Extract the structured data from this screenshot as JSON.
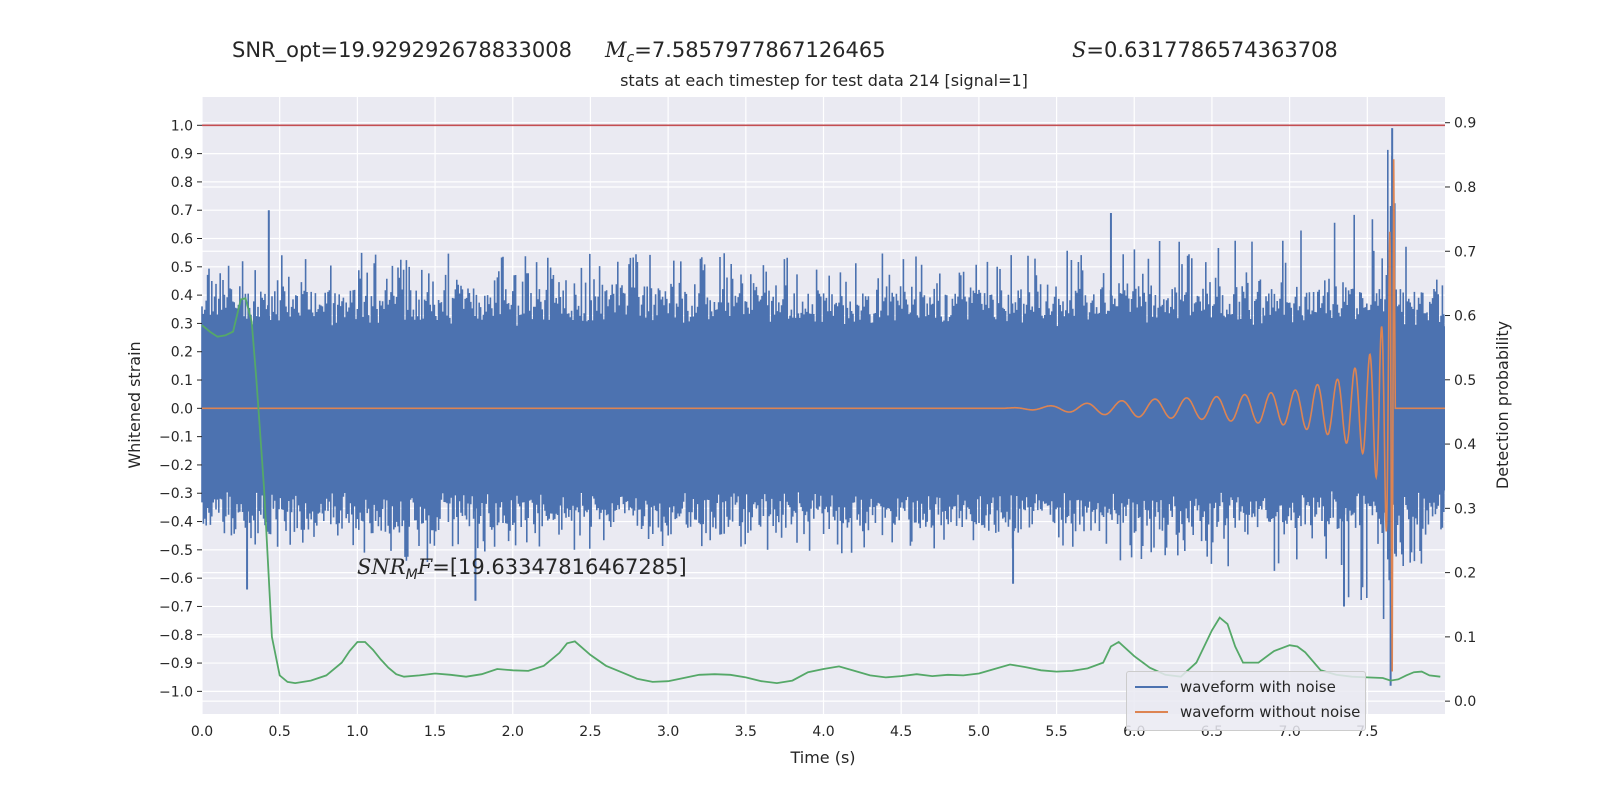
{
  "header": {
    "snr_opt": "SNR_opt=19.929292678833008",
    "mc_symbol": "M",
    "mc_sub": "c",
    "mc_value": "=7.5857977867126465",
    "s_symbol": "S",
    "s_value": "=0.6317786574363708"
  },
  "annotation": {
    "symbol": "SNR",
    "sub": "M",
    "rest": "F",
    "value": "=[19.63347816467285]"
  },
  "colors": {
    "noise": "#4c72b0",
    "clean": "#dd8452",
    "probability": "#55a868",
    "threshold": "#c44e52",
    "panel": "#eaeaf2",
    "grid": "#ffffff"
  },
  "chart_data": {
    "type": "line",
    "title": "stats at each timestep for test data 214 [signal=1]",
    "xlabel": "Time (s)",
    "ylabel": "Whitened strain",
    "y2label": "Detection probability",
    "xlim": [
      0.0,
      8.0
    ],
    "ylim": [
      -1.08,
      1.1
    ],
    "y2lim": [
      -0.02,
      0.94
    ],
    "xticks": [
      "0.0",
      "0.5",
      "1.0",
      "1.5",
      "2.0",
      "2.5",
      "3.0",
      "3.5",
      "4.0",
      "4.5",
      "5.0",
      "5.5",
      "6.0",
      "6.5",
      "7.0",
      "7.5"
    ],
    "yticks": [
      "1.0",
      "0.9",
      "0.8",
      "0.7",
      "0.6",
      "0.5",
      "0.4",
      "0.3",
      "0.2",
      "0.1",
      "0.0",
      "−0.1",
      "−0.2",
      "−0.3",
      "−0.4",
      "−0.5",
      "−0.6",
      "−0.7",
      "−0.8",
      "−0.9",
      "−1.0"
    ],
    "y2ticks": [
      "0.9",
      "0.8",
      "0.7",
      "0.6",
      "0.5",
      "0.4",
      "0.3",
      "0.2",
      "0.1",
      "0.0"
    ],
    "grid": true,
    "legend_position": "lower-right",
    "series": [
      {
        "name": "waveform with noise",
        "axis": "left",
        "style": "dense-noise",
        "envelope_t": [
          0.0,
          0.5,
          1.0,
          1.5,
          2.0,
          2.5,
          3.0,
          3.5,
          4.0,
          4.5,
          5.0,
          5.5,
          6.0,
          6.5,
          7.0,
          7.5,
          7.6,
          7.65,
          7.68,
          7.7,
          8.0
        ],
        "envelope_hi": [
          0.5,
          0.55,
          0.55,
          0.55,
          0.55,
          0.55,
          0.55,
          0.55,
          0.55,
          0.55,
          0.55,
          0.55,
          0.6,
          0.6,
          0.65,
          0.7,
          0.8,
          1.0,
          0.9,
          0.6,
          0.55
        ],
        "envelope_lo": [
          -0.45,
          -0.5,
          -0.52,
          -0.55,
          -0.5,
          -0.5,
          -0.5,
          -0.5,
          -0.52,
          -0.5,
          -0.5,
          -0.52,
          -0.55,
          -0.55,
          -0.6,
          -0.7,
          -0.8,
          -1.0,
          -0.9,
          -0.6,
          -0.5
        ],
        "spikes": [
          {
            "t": 0.26,
            "v": 0.38
          },
          {
            "t": 0.43,
            "v": 0.7
          },
          {
            "t": 0.29,
            "v": -0.64
          },
          {
            "t": 1.76,
            "v": -0.68
          },
          {
            "t": 5.22,
            "v": -0.62
          },
          {
            "t": 5.85,
            "v": 0.69
          },
          {
            "t": 7.35,
            "v": -0.7
          },
          {
            "t": 7.66,
            "v": 0.99
          },
          {
            "t": 7.65,
            "v": -0.98
          }
        ]
      },
      {
        "name": "waveform without noise",
        "axis": "left",
        "style": "chirp",
        "onset": 5.15,
        "merger": 7.66,
        "peak": 0.88,
        "trough": -0.93,
        "amplitude_t": [
          5.15,
          5.5,
          6.0,
          6.5,
          7.0,
          7.3,
          7.5,
          7.6,
          7.64,
          7.66
        ],
        "amplitude": [
          0.0,
          0.01,
          0.03,
          0.04,
          0.06,
          0.1,
          0.17,
          0.3,
          0.55,
          0.88
        ]
      },
      {
        "name": "detection probability",
        "axis": "right",
        "t": [
          0.0,
          0.05,
          0.1,
          0.15,
          0.2,
          0.25,
          0.28,
          0.32,
          0.35,
          0.4,
          0.45,
          0.5,
          0.55,
          0.6,
          0.7,
          0.8,
          0.9,
          0.95,
          1.0,
          1.05,
          1.1,
          1.15,
          1.2,
          1.25,
          1.3,
          1.4,
          1.5,
          1.6,
          1.7,
          1.8,
          1.9,
          2.0,
          2.1,
          2.2,
          2.3,
          2.35,
          2.4,
          2.5,
          2.6,
          2.7,
          2.8,
          2.9,
          3.0,
          3.1,
          3.2,
          3.3,
          3.4,
          3.5,
          3.6,
          3.7,
          3.8,
          3.9,
          4.0,
          4.1,
          4.2,
          4.3,
          4.4,
          4.5,
          4.6,
          4.7,
          4.8,
          4.9,
          5.0,
          5.1,
          5.2,
          5.3,
          5.4,
          5.5,
          5.6,
          5.7,
          5.8,
          5.85,
          5.9,
          6.0,
          6.1,
          6.2,
          6.3,
          6.4,
          6.5,
          6.55,
          6.6,
          6.65,
          6.7,
          6.8,
          6.9,
          7.0,
          7.05,
          7.1,
          7.2,
          7.3,
          7.4,
          7.5,
          7.6,
          7.65,
          7.7,
          7.75,
          7.8,
          7.85,
          7.9,
          7.97
        ],
        "values": [
          0.585,
          0.575,
          0.567,
          0.569,
          0.575,
          0.625,
          0.627,
          0.59,
          0.5,
          0.33,
          0.1,
          0.04,
          0.03,
          0.028,
          0.032,
          0.04,
          0.06,
          0.078,
          0.092,
          0.092,
          0.08,
          0.065,
          0.052,
          0.042,
          0.038,
          0.04,
          0.043,
          0.041,
          0.038,
          0.042,
          0.05,
          0.048,
          0.047,
          0.055,
          0.075,
          0.09,
          0.093,
          0.072,
          0.055,
          0.045,
          0.035,
          0.03,
          0.031,
          0.036,
          0.041,
          0.042,
          0.041,
          0.037,
          0.031,
          0.028,
          0.032,
          0.045,
          0.05,
          0.054,
          0.047,
          0.04,
          0.037,
          0.039,
          0.042,
          0.039,
          0.041,
          0.04,
          0.043,
          0.05,
          0.057,
          0.053,
          0.048,
          0.046,
          0.047,
          0.051,
          0.06,
          0.085,
          0.092,
          0.07,
          0.052,
          0.041,
          0.038,
          0.06,
          0.11,
          0.13,
          0.12,
          0.085,
          0.06,
          0.06,
          0.078,
          0.087,
          0.085,
          0.076,
          0.048,
          0.041,
          0.038,
          0.037,
          0.036,
          0.032,
          0.034,
          0.04,
          0.045,
          0.046,
          0.04,
          0.038
        ]
      },
      {
        "name": "threshold",
        "axis": "left",
        "style": "hline",
        "value": 1.0
      }
    ]
  }
}
